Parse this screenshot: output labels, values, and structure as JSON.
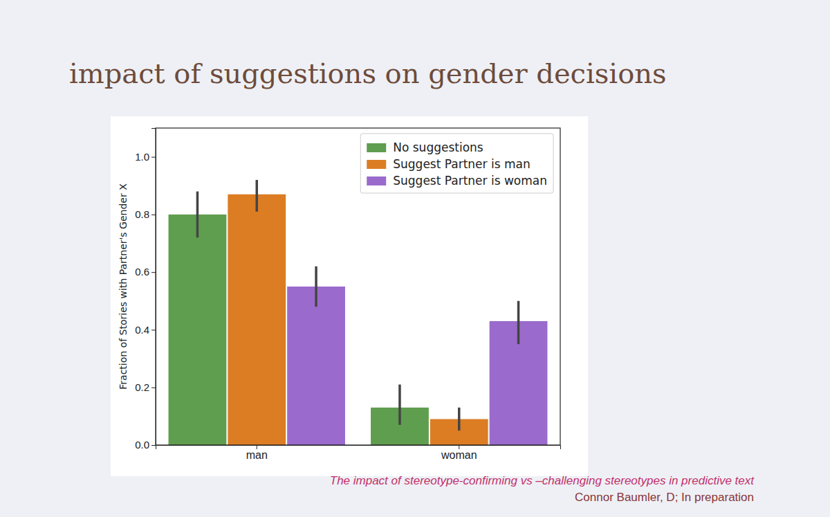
{
  "chart_data": {
    "type": "bar",
    "title": "impact of suggestions on gender decisions",
    "y_label": "Fraction of Stories with Partner's Gender X",
    "categories": [
      "man",
      "woman"
    ],
    "series": [
      {
        "name": "No suggestions",
        "color": "#5f9d4f",
        "values": [
          0.8,
          0.13
        ],
        "ci_low": [
          0.72,
          0.07
        ],
        "ci_high": [
          0.88,
          0.21
        ]
      },
      {
        "name": "Suggest Partner is man",
        "color": "#dc7d24",
        "values": [
          0.87,
          0.09
        ],
        "ci_low": [
          0.81,
          0.05
        ],
        "ci_high": [
          0.92,
          0.13
        ]
      },
      {
        "name": "Suggest Partner is woman",
        "color": "#9a6bcc",
        "values": [
          0.55,
          0.43
        ],
        "ci_low": [
          0.48,
          0.35
        ],
        "ci_high": [
          0.62,
          0.5
        ]
      }
    ],
    "ylim": [
      0,
      1.1
    ],
    "yticks": [
      {
        "value": 0,
        "label": "0.0"
      },
      0.2,
      0.4,
      0.6,
      0.8,
      {
        "value": 1,
        "label": "1.0"
      }
    ],
    "grid": false,
    "legend": "upper right",
    "data_labels": false,
    "annotations": [
      "The impact of stereotype-confirming vs –challenging stereotypes in predictive text",
      "Connor Baumler, D; In preparation"
    ]
  }
}
